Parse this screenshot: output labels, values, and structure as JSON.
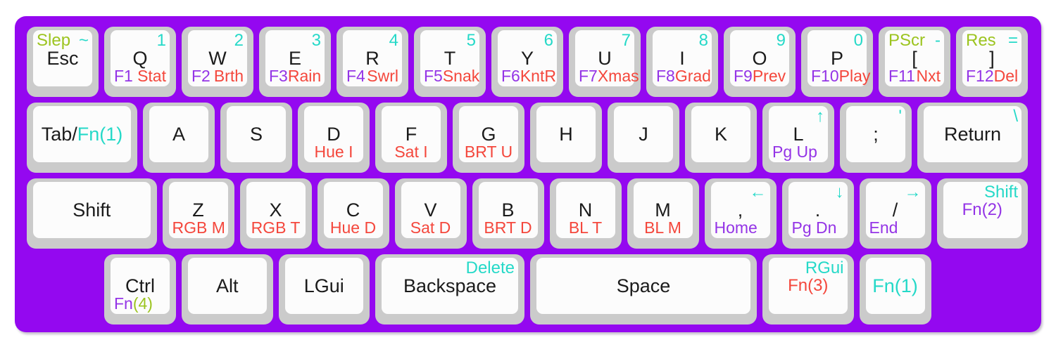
{
  "colors": {
    "page_bg": "#ffffff",
    "board_bg": "#9408f0",
    "keycap": "#cbcbcb",
    "keytop": "#fcfcfc",
    "black": "#1b1b1b",
    "cyan": "#25d9c8",
    "red": "#f4473c",
    "purple": "#9434e6",
    "green": "#9cc41f"
  },
  "rows": [
    {
      "keys": [
        {
          "id": "esc",
          "w": 1,
          "legends": {
            "tl": [
              {
                "t": "Slep",
                "c": "green"
              }
            ],
            "tr": [
              {
                "t": "~",
                "c": "cyan"
              }
            ],
            "mid": [
              {
                "t": "Esc",
                "c": "black"
              }
            ]
          }
        },
        {
          "id": "q",
          "w": 1,
          "legends": {
            "tr": [
              {
                "t": "1",
                "c": "cyan"
              }
            ],
            "mid": [
              {
                "t": "Q",
                "c": "black"
              }
            ],
            "bl": [
              {
                "t": "F1",
                "c": "purple"
              }
            ],
            "br": [
              {
                "t": "Stat",
                "c": "red"
              }
            ]
          }
        },
        {
          "id": "w",
          "w": 1,
          "legends": {
            "tr": [
              {
                "t": "2",
                "c": "cyan"
              }
            ],
            "mid": [
              {
                "t": "W",
                "c": "black"
              }
            ],
            "bl": [
              {
                "t": "F2",
                "c": "purple"
              }
            ],
            "br": [
              {
                "t": "Brth",
                "c": "red"
              }
            ]
          }
        },
        {
          "id": "e",
          "w": 1,
          "legends": {
            "tr": [
              {
                "t": "3",
                "c": "cyan"
              }
            ],
            "mid": [
              {
                "t": "E",
                "c": "black"
              }
            ],
            "bl": [
              {
                "t": "F3",
                "c": "purple"
              }
            ],
            "br": [
              {
                "t": "Rain",
                "c": "red"
              }
            ]
          }
        },
        {
          "id": "r",
          "w": 1,
          "legends": {
            "tr": [
              {
                "t": "4",
                "c": "cyan"
              }
            ],
            "mid": [
              {
                "t": "R",
                "c": "black"
              }
            ],
            "bl": [
              {
                "t": "F4",
                "c": "purple"
              }
            ],
            "br": [
              {
                "t": "Swrl",
                "c": "red"
              }
            ]
          }
        },
        {
          "id": "t",
          "w": 1,
          "legends": {
            "tr": [
              {
                "t": "5",
                "c": "cyan"
              }
            ],
            "mid": [
              {
                "t": "T",
                "c": "black"
              }
            ],
            "bl": [
              {
                "t": "F5",
                "c": "purple"
              }
            ],
            "br": [
              {
                "t": "Snak",
                "c": "red"
              }
            ]
          }
        },
        {
          "id": "y",
          "w": 1,
          "legends": {
            "tr": [
              {
                "t": "6",
                "c": "cyan"
              }
            ],
            "mid": [
              {
                "t": "Y",
                "c": "black"
              }
            ],
            "bl": [
              {
                "t": "F6",
                "c": "purple"
              }
            ],
            "br": [
              {
                "t": "KntR",
                "c": "red"
              }
            ]
          }
        },
        {
          "id": "u",
          "w": 1,
          "legends": {
            "tr": [
              {
                "t": "7",
                "c": "cyan"
              }
            ],
            "mid": [
              {
                "t": "U",
                "c": "black"
              }
            ],
            "bl": [
              {
                "t": "F7",
                "c": "purple"
              }
            ],
            "br": [
              {
                "t": "Xmas",
                "c": "red"
              }
            ]
          }
        },
        {
          "id": "i",
          "w": 1,
          "legends": {
            "tr": [
              {
                "t": "8",
                "c": "cyan"
              }
            ],
            "mid": [
              {
                "t": "I",
                "c": "black"
              }
            ],
            "bl": [
              {
                "t": "F8",
                "c": "purple"
              }
            ],
            "br": [
              {
                "t": "Grad",
                "c": "red"
              }
            ]
          }
        },
        {
          "id": "o",
          "w": 1,
          "legends": {
            "tr": [
              {
                "t": "9",
                "c": "cyan"
              }
            ],
            "mid": [
              {
                "t": "O",
                "c": "black"
              }
            ],
            "bl": [
              {
                "t": "F9",
                "c": "purple"
              }
            ],
            "br": [
              {
                "t": "Prev",
                "c": "red"
              }
            ]
          }
        },
        {
          "id": "p",
          "w": 1,
          "legends": {
            "tr": [
              {
                "t": "0",
                "c": "cyan"
              }
            ],
            "mid": [
              {
                "t": "P",
                "c": "black"
              }
            ],
            "bl": [
              {
                "t": "F10",
                "c": "purple"
              }
            ],
            "br": [
              {
                "t": "Play",
                "c": "red"
              }
            ]
          }
        },
        {
          "id": "lbracket",
          "w": 1,
          "legends": {
            "tl": [
              {
                "t": "PScr",
                "c": "green"
              }
            ],
            "tr": [
              {
                "t": "-",
                "c": "cyan"
              }
            ],
            "mid": [
              {
                "t": "[",
                "c": "black"
              }
            ],
            "bl": [
              {
                "t": "F11",
                "c": "purple"
              }
            ],
            "br": [
              {
                "t": "Nxt",
                "c": "red"
              }
            ]
          }
        },
        {
          "id": "rbracket",
          "w": 1,
          "legends": {
            "tl": [
              {
                "t": "Res",
                "c": "green"
              }
            ],
            "tr": [
              {
                "t": "=",
                "c": "cyan"
              }
            ],
            "mid": [
              {
                "t": "]",
                "c": "black"
              }
            ],
            "bl": [
              {
                "t": "F12",
                "c": "purple"
              }
            ],
            "br": [
              {
                "t": "Del",
                "c": "red"
              }
            ]
          }
        }
      ]
    },
    {
      "keys": [
        {
          "id": "tab",
          "w": 1.5,
          "legends": {
            "mid": [
              {
                "t": "Tab/",
                "c": "black"
              },
              {
                "t": "Fn(1)",
                "c": "cyan"
              }
            ]
          }
        },
        {
          "id": "a",
          "w": 1,
          "legends": {
            "mid": [
              {
                "t": "A",
                "c": "black"
              }
            ]
          }
        },
        {
          "id": "s",
          "w": 1,
          "legends": {
            "mid": [
              {
                "t": "S",
                "c": "black"
              }
            ]
          }
        },
        {
          "id": "d",
          "w": 1,
          "legends": {
            "mid": [
              {
                "t": "D",
                "c": "black"
              }
            ],
            "bc": [
              {
                "t": "Hue I",
                "c": "red"
              }
            ]
          }
        },
        {
          "id": "f",
          "w": 1,
          "legends": {
            "mid": [
              {
                "t": "F",
                "c": "black"
              }
            ],
            "bc": [
              {
                "t": "Sat I",
                "c": "red"
              }
            ]
          }
        },
        {
          "id": "g",
          "w": 1,
          "legends": {
            "mid": [
              {
                "t": "G",
                "c": "black"
              }
            ],
            "bc": [
              {
                "t": "BRT U",
                "c": "red"
              }
            ]
          }
        },
        {
          "id": "h",
          "w": 1,
          "legends": {
            "mid": [
              {
                "t": "H",
                "c": "black"
              }
            ]
          }
        },
        {
          "id": "j",
          "w": 1,
          "legends": {
            "mid": [
              {
                "t": "J",
                "c": "black"
              }
            ]
          }
        },
        {
          "id": "k",
          "w": 1,
          "legends": {
            "mid": [
              {
                "t": "K",
                "c": "black"
              }
            ]
          }
        },
        {
          "id": "l",
          "w": 1,
          "legends": {
            "tr": [
              {
                "t": "↑",
                "c": "cyan"
              }
            ],
            "mid": [
              {
                "t": "L",
                "c": "black"
              }
            ],
            "bl": [
              {
                "t": "Pg Up",
                "c": "purple"
              }
            ]
          }
        },
        {
          "id": "semicolon",
          "w": 1,
          "legends": {
            "tr": [
              {
                "t": "'",
                "c": "cyan"
              }
            ],
            "mid": [
              {
                "t": ";",
                "c": "black"
              }
            ]
          }
        },
        {
          "id": "return",
          "w": 1.5,
          "legends": {
            "tr": [
              {
                "t": "\\",
                "c": "cyan"
              }
            ],
            "mid": [
              {
                "t": "Return",
                "c": "black"
              }
            ]
          }
        }
      ]
    },
    {
      "keys": [
        {
          "id": "lshift",
          "w": 1.75,
          "legends": {
            "mid": [
              {
                "t": "Shift",
                "c": "black"
              }
            ]
          }
        },
        {
          "id": "z",
          "w": 1,
          "legends": {
            "mid": [
              {
                "t": "Z",
                "c": "black"
              }
            ],
            "bc": [
              {
                "t": "RGB M",
                "c": "red"
              }
            ]
          }
        },
        {
          "id": "x",
          "w": 1,
          "legends": {
            "mid": [
              {
                "t": "X",
                "c": "black"
              }
            ],
            "bc": [
              {
                "t": "RGB T",
                "c": "red"
              }
            ]
          }
        },
        {
          "id": "c",
          "w": 1,
          "legends": {
            "mid": [
              {
                "t": "C",
                "c": "black"
              }
            ],
            "bc": [
              {
                "t": "Hue D",
                "c": "red"
              }
            ]
          }
        },
        {
          "id": "v",
          "w": 1,
          "legends": {
            "mid": [
              {
                "t": "V",
                "c": "black"
              }
            ],
            "bc": [
              {
                "t": "Sat D",
                "c": "red"
              }
            ]
          }
        },
        {
          "id": "b",
          "w": 1,
          "legends": {
            "mid": [
              {
                "t": "B",
                "c": "black"
              }
            ],
            "bc": [
              {
                "t": "BRT D",
                "c": "red"
              }
            ]
          }
        },
        {
          "id": "n",
          "w": 1,
          "legends": {
            "mid": [
              {
                "t": "N",
                "c": "black"
              }
            ],
            "bc": [
              {
                "t": "BL T",
                "c": "red"
              }
            ]
          }
        },
        {
          "id": "m",
          "w": 1,
          "legends": {
            "mid": [
              {
                "t": "M",
                "c": "black"
              }
            ],
            "bc": [
              {
                "t": "BL M",
                "c": "red"
              }
            ]
          }
        },
        {
          "id": "comma",
          "w": 1,
          "legends": {
            "tr": [
              {
                "t": "←",
                "c": "cyan"
              }
            ],
            "mid": [
              {
                "t": ",",
                "c": "black"
              }
            ],
            "bl": [
              {
                "t": "Home",
                "c": "purple"
              }
            ]
          }
        },
        {
          "id": "period",
          "w": 1,
          "legends": {
            "tr": [
              {
                "t": "↓",
                "c": "cyan"
              }
            ],
            "mid": [
              {
                "t": ".",
                "c": "black"
              }
            ],
            "bl": [
              {
                "t": "Pg Dn",
                "c": "purple"
              }
            ]
          }
        },
        {
          "id": "slash",
          "w": 1,
          "legends": {
            "tr": [
              {
                "t": "→",
                "c": "cyan"
              }
            ],
            "mid": [
              {
                "t": "/",
                "c": "black"
              }
            ],
            "bl": [
              {
                "t": "End",
                "c": "purple"
              }
            ]
          }
        },
        {
          "id": "rshift",
          "w": 1.25,
          "legends": {
            "tr": [
              {
                "t": "Shift",
                "c": "cyan"
              }
            ],
            "tc2": [
              {
                "t": "Fn(2)",
                "c": "purple"
              }
            ]
          }
        }
      ]
    },
    {
      "keys": [
        {
          "id": "ctrl",
          "w": 1,
          "gap": 1,
          "legends": {
            "mid": [
              {
                "t": "Ctrl",
                "c": "black"
              }
            ],
            "bl": [
              {
                "t": "Fn",
                "c": "purple"
              },
              {
                "t": "(4)",
                "c": "green"
              }
            ]
          }
        },
        {
          "id": "alt",
          "w": 1.25,
          "legends": {
            "mid": [
              {
                "t": "Alt",
                "c": "black"
              }
            ]
          }
        },
        {
          "id": "lgui",
          "w": 1.25,
          "legends": {
            "mid": [
              {
                "t": "LGui",
                "c": "black"
              }
            ]
          }
        },
        {
          "id": "backspace",
          "w": 2,
          "legends": {
            "tr": [
              {
                "t": "Delete",
                "c": "cyan"
              }
            ],
            "mid": [
              {
                "t": "Backspace",
                "c": "black"
              }
            ]
          }
        },
        {
          "id": "space",
          "w": 3,
          "legends": {
            "mid": [
              {
                "t": "Space",
                "c": "black"
              }
            ]
          }
        },
        {
          "id": "fn3",
          "w": 1.25,
          "legends": {
            "tr": [
              {
                "t": "RGui",
                "c": "cyan"
              }
            ],
            "tc2": [
              {
                "t": "Fn(3)",
                "c": "red"
              }
            ]
          }
        },
        {
          "id": "fn1",
          "w": 1,
          "legends": {
            "mid": [
              {
                "t": "Fn(1)",
                "c": "cyan"
              }
            ]
          }
        }
      ]
    }
  ]
}
